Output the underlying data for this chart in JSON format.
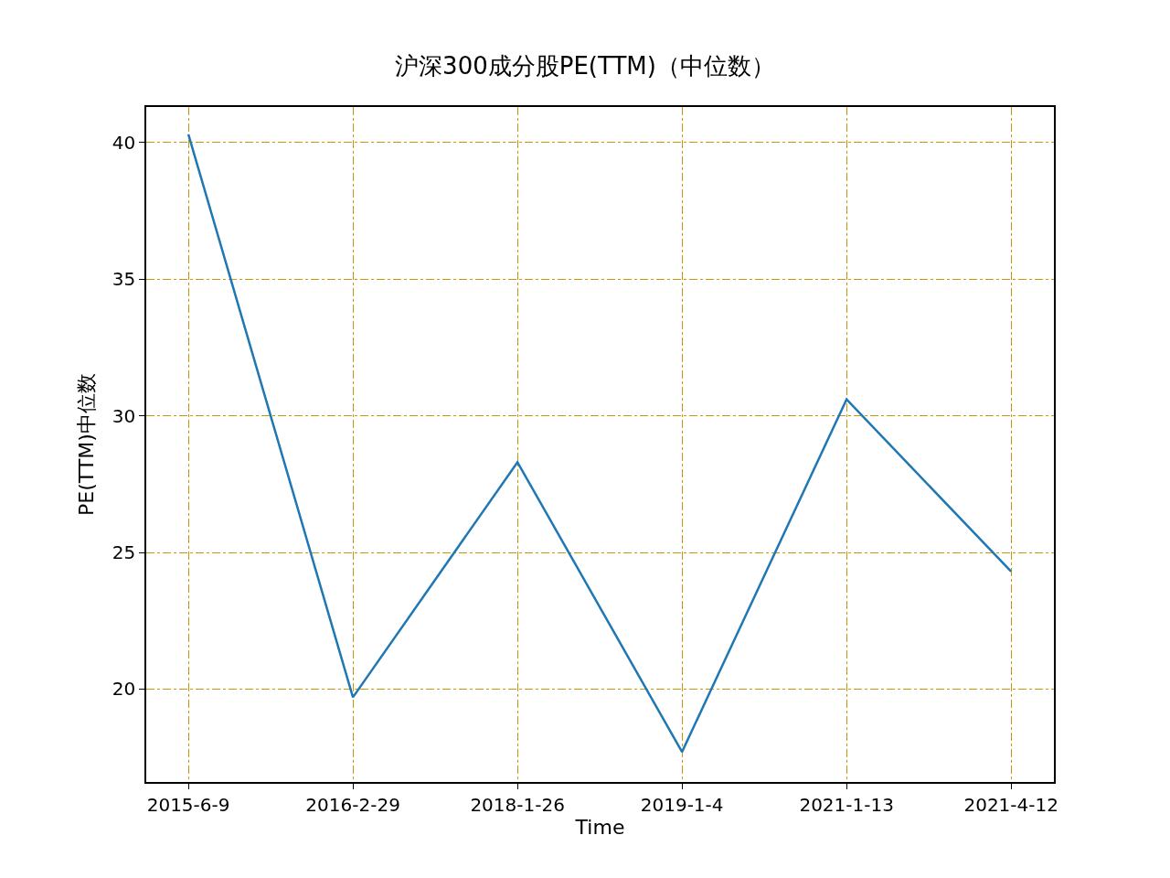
{
  "chart_data": {
    "type": "line",
    "title": "沪深300成分股PE(TTM)（中位数）",
    "xlabel": "Time",
    "ylabel": "PE(TTM)中位数",
    "categories": [
      "2015-6-9",
      "2016-2-29",
      "2018-1-26",
      "2019-1-4",
      "2021-1-13",
      "2021-4-12"
    ],
    "series": [
      {
        "color": "#1f77b4",
        "values": [
          40.3,
          19.7,
          28.3,
          17.7,
          30.6,
          24.3
        ]
      }
    ],
    "ylim": [
      16.6,
      41.3
    ],
    "yticks": [
      20,
      25,
      30,
      35,
      40
    ],
    "grid": true,
    "line_style": "solid"
  }
}
